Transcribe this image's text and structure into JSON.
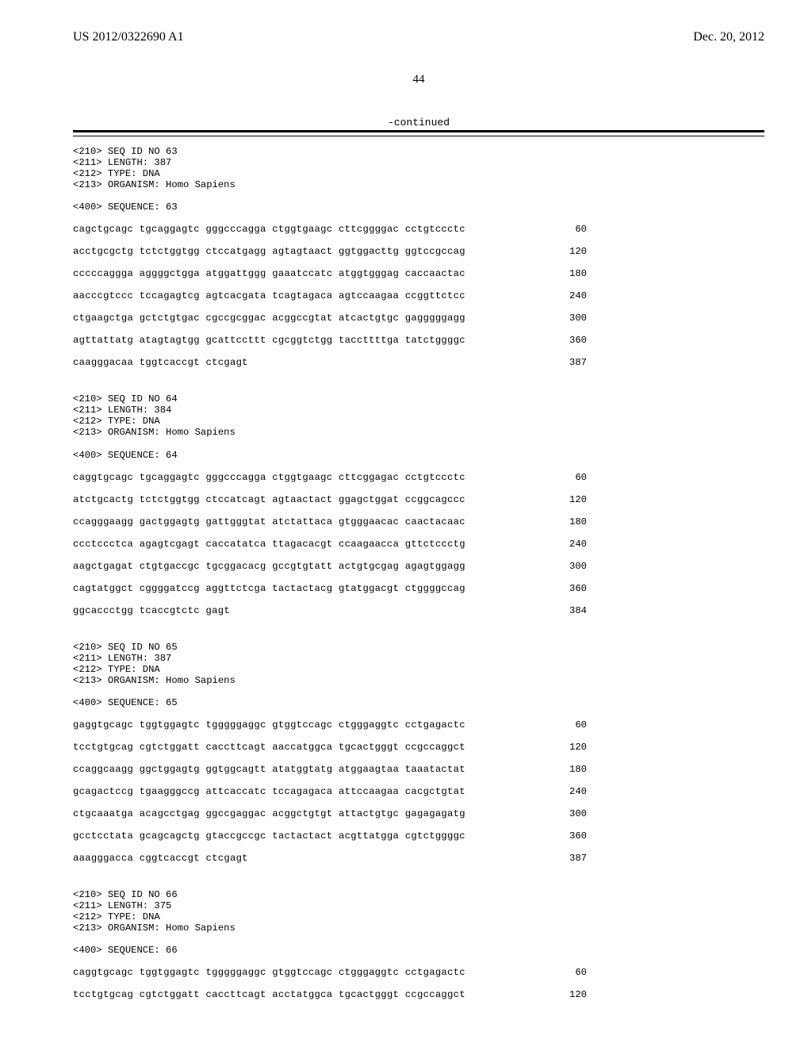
{
  "pub_number": "US 2012/0322690 A1",
  "pub_date": "Dec. 20, 2012",
  "page_number": "44",
  "continued_label": "-continued",
  "sequences": [
    {
      "header": [
        "<210> SEQ ID NO 63",
        "<211> LENGTH: 387",
        "<212> TYPE: DNA",
        "<213> ORGANISM: Homo Sapiens"
      ],
      "sequence_label": "<400> SEQUENCE: 63",
      "lines": [
        {
          "text": "cagctgcagc tgcaggagtc gggcccagga ctggtgaagc cttcggggac cctgtccctc",
          "pos": "60"
        },
        {
          "text": "acctgcgctg tctctggtgg ctccatgagg agtagtaact ggtggacttg ggtccgccag",
          "pos": "120"
        },
        {
          "text": "cccccaggga aggggctgga atggattggg gaaatccatc atggtgggag caccaactac",
          "pos": "180"
        },
        {
          "text": "aacccgtccc tccagagtcg agtcacgata tcagtagaca agtccaagaa ccggttctcc",
          "pos": "240"
        },
        {
          "text": "ctgaagctga gctctgtgac cgccgcggac acggccgtat atcactgtgc gagggggagg",
          "pos": "300"
        },
        {
          "text": "agttattatg atagtagtgg gcattccttt cgcggtctgg taccttttga tatctggggc",
          "pos": "360"
        },
        {
          "text": "caagggacaa tggtcaccgt ctcgagt",
          "pos": "387"
        }
      ]
    },
    {
      "header": [
        "<210> SEQ ID NO 64",
        "<211> LENGTH: 384",
        "<212> TYPE: DNA",
        "<213> ORGANISM: Homo Sapiens"
      ],
      "sequence_label": "<400> SEQUENCE: 64",
      "lines": [
        {
          "text": "caggtgcagc tgcaggagtc gggcccagga ctggtgaagc cttcggagac cctgtccctc",
          "pos": "60"
        },
        {
          "text": "atctgcactg tctctggtgg ctccatcagt agtaactact ggagctggat ccggcagccc",
          "pos": "120"
        },
        {
          "text": "ccagggaagg gactggagtg gattgggtat atctattaca gtgggaacac caactacaac",
          "pos": "180"
        },
        {
          "text": "ccctccctca agagtcgagt caccatatca ttagacacgt ccaagaacca gttctccctg",
          "pos": "240"
        },
        {
          "text": "aagctgagat ctgtgaccgc tgcggacacg gccgtgtatt actgtgcgag agagtggagg",
          "pos": "300"
        },
        {
          "text": "cagtatggct cggggatccg aggttctcga tactactacg gtatggacgt ctggggccag",
          "pos": "360"
        },
        {
          "text": "ggcaccctgg tcaccgtctc gagt",
          "pos": "384"
        }
      ]
    },
    {
      "header": [
        "<210> SEQ ID NO 65",
        "<211> LENGTH: 387",
        "<212> TYPE: DNA",
        "<213> ORGANISM: Homo Sapiens"
      ],
      "sequence_label": "<400> SEQUENCE: 65",
      "lines": [
        {
          "text": "gaggtgcagc tggtggagtc tgggggaggc gtggtccagc ctgggaggtc cctgagactc",
          "pos": "60"
        },
        {
          "text": "tcctgtgcag cgtctggatt caccttcagt aaccatggca tgcactgggt ccgccaggct",
          "pos": "120"
        },
        {
          "text": "ccaggcaagg ggctggagtg ggtggcagtt atatggtatg atggaagtaa taaatactat",
          "pos": "180"
        },
        {
          "text": "gcagactccg tgaagggccg attcaccatc tccagagaca attccaagaa cacgctgtat",
          "pos": "240"
        },
        {
          "text": "ctgcaaatga acagcctgag ggccgaggac acggctgtgt attactgtgc gagagagatg",
          "pos": "300"
        },
        {
          "text": "gcctcctata gcagcagctg gtaccgccgc tactactact acgttatgga cgtctggggc",
          "pos": "360"
        },
        {
          "text": "aaagggacca cggtcaccgt ctcgagt",
          "pos": "387"
        }
      ]
    },
    {
      "header": [
        "<210> SEQ ID NO 66",
        "<211> LENGTH: 375",
        "<212> TYPE: DNA",
        "<213> ORGANISM: Homo Sapiens"
      ],
      "sequence_label": "<400> SEQUENCE: 66",
      "lines": [
        {
          "text": "caggtgcagc tggtggagtc tgggggaggc gtggtccagc ctgggaggtc cctgagactc",
          "pos": "60"
        },
        {
          "text": "tcctgtgcag cgtctggatt caccttcagt acctatggca tgcactgggt ccgccaggct",
          "pos": "120"
        }
      ]
    }
  ]
}
